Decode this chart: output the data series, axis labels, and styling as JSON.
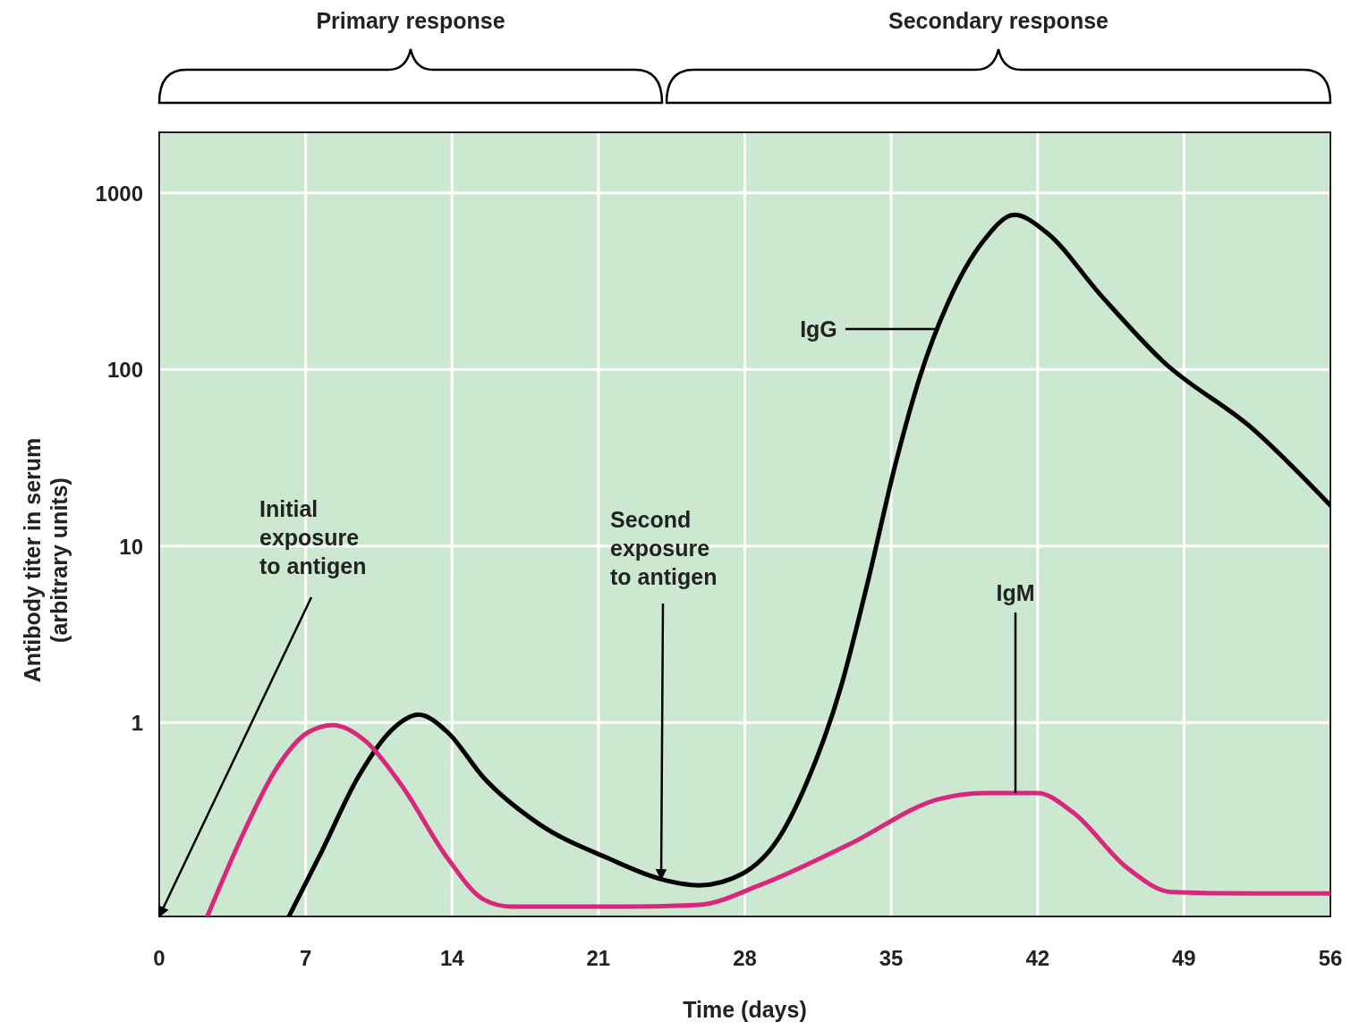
{
  "chart_data": {
    "type": "line",
    "xlabel": "Time (days)",
    "ylabel": "Antibody titer in serum (arbitrary units)",
    "log": "y",
    "grid": true,
    "xlim": [
      0,
      56
    ],
    "ylim": [
      0.08,
      2200
    ],
    "xticks": [
      0,
      7,
      14,
      21,
      28,
      35,
      42,
      49,
      56
    ],
    "yticks": [
      1,
      10,
      100,
      1000
    ],
    "series": [
      {
        "name": "IgG",
        "color": "#000000",
        "x": [
          6.2,
          7.8,
          9.5,
          11.2,
          12.4,
          13.8,
          15.5,
          18.1,
          21.5,
          24.0,
          25.8,
          27.9,
          29.6,
          30.9,
          32.6,
          33.9,
          35.2,
          36.4,
          37.7,
          39.4,
          40.9,
          42.4,
          45.0,
          48.0,
          52.3,
          56
        ],
        "values": [
          0.08,
          0.19,
          0.49,
          0.93,
          1.11,
          0.88,
          0.49,
          0.27,
          0.17,
          0.13,
          0.12,
          0.14,
          0.22,
          0.44,
          1.6,
          6.4,
          29,
          93,
          236,
          532,
          750,
          600,
          265,
          111,
          46,
          17
        ]
      },
      {
        "name": "IgM",
        "color": "#d9287c",
        "x": [
          2.3,
          3.9,
          5.6,
          7.1,
          8.3,
          9.9,
          11.6,
          13.8,
          15.5,
          16.8,
          22.3,
          25.8,
          28.7,
          33.0,
          37.3,
          39.4,
          42.0,
          43.7,
          46.3,
          48.4,
          52.3,
          56
        ],
        "values": [
          0.08,
          0.22,
          0.55,
          0.88,
          0.97,
          0.78,
          0.44,
          0.17,
          0.1,
          0.091,
          0.091,
          0.093,
          0.12,
          0.205,
          0.37,
          0.4,
          0.4,
          0.31,
          0.15,
          0.11,
          0.108,
          0.108
        ]
      }
    ],
    "annotations": [
      "Primary response",
      "Secondary response",
      "Initial exposure to antigen",
      {
        "text": "Second exposure to antigen",
        "x": 24,
        "y": 0.13
      }
    ]
  }
}
